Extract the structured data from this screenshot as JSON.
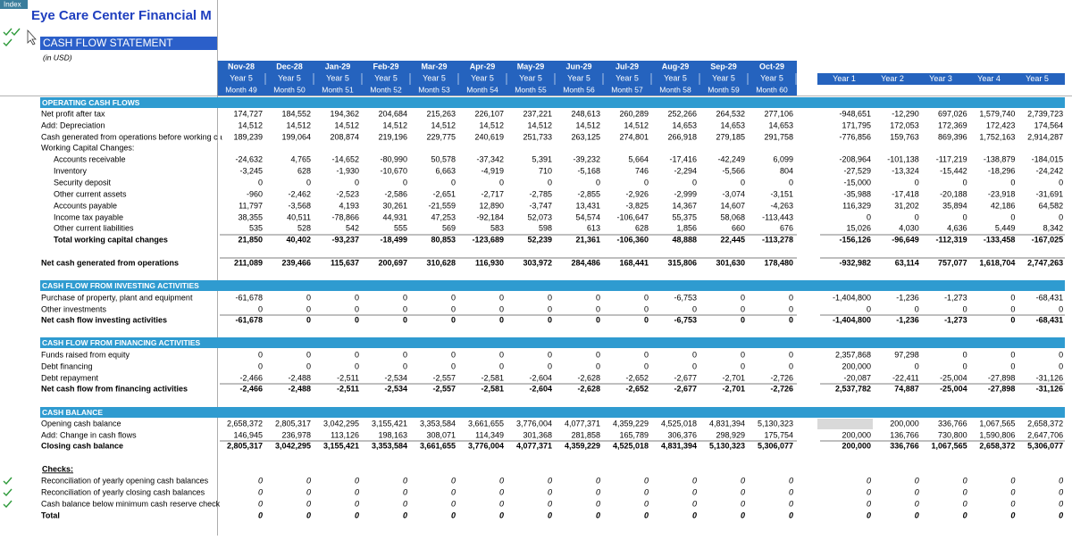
{
  "badge": "Index",
  "title": "Eye Care Center Financial M",
  "statement": "CASH FLOW STATEMENT",
  "unit": "(in USD)",
  "months": [
    {
      "date": "Nov-28",
      "year": "Year 5",
      "month": "Month 49"
    },
    {
      "date": "Dec-28",
      "year": "Year 5",
      "month": "Month 50"
    },
    {
      "date": "Jan-29",
      "year": "Year 5",
      "month": "Month 51"
    },
    {
      "date": "Feb-29",
      "year": "Year 5",
      "month": "Month 52"
    },
    {
      "date": "Mar-29",
      "year": "Year 5",
      "month": "Month 53"
    },
    {
      "date": "Apr-29",
      "year": "Year 5",
      "month": "Month 54"
    },
    {
      "date": "May-29",
      "year": "Year 5",
      "month": "Month 55"
    },
    {
      "date": "Jun-29",
      "year": "Year 5",
      "month": "Month 56"
    },
    {
      "date": "Jul-29",
      "year": "Year 5",
      "month": "Month 57"
    },
    {
      "date": "Aug-29",
      "year": "Year 5",
      "month": "Month 58"
    },
    {
      "date": "Sep-29",
      "year": "Year 5",
      "month": "Month 59"
    },
    {
      "date": "Oct-29",
      "year": "Year 5",
      "month": "Month 60"
    }
  ],
  "years": [
    "Year 1",
    "Year 2",
    "Year 3",
    "Year 4",
    "Year 5"
  ],
  "sections": [
    {
      "title": "OPERATING CASH FLOWS",
      "rows": [
        {
          "label": "Net profit after tax",
          "monthly": [
            "174,727",
            "184,552",
            "194,362",
            "204,684",
            "215,263",
            "226,107",
            "237,221",
            "248,613",
            "260,289",
            "252,266",
            "264,532",
            "277,106"
          ],
          "yearly": [
            "-948,651",
            "-12,290",
            "697,026",
            "1,579,740",
            "2,739,723"
          ]
        },
        {
          "label": "Add: Depreciation",
          "monthly": [
            "14,512",
            "14,512",
            "14,512",
            "14,512",
            "14,512",
            "14,512",
            "14,512",
            "14,512",
            "14,512",
            "14,653",
            "14,653",
            "14,653"
          ],
          "yearly": [
            "171,795",
            "172,053",
            "172,369",
            "172,423",
            "174,564"
          ]
        },
        {
          "label": "Cash generated from operations before working ca",
          "monthly": [
            "189,239",
            "199,064",
            "208,874",
            "219,196",
            "229,775",
            "240,619",
            "251,733",
            "263,125",
            "274,801",
            "266,918",
            "279,185",
            "291,758"
          ],
          "yearly": [
            "-776,856",
            "159,763",
            "869,396",
            "1,752,163",
            "2,914,287"
          ]
        },
        {
          "label": "Working Capital Changes:"
        },
        {
          "label": "Accounts receivable",
          "monthly": [
            "-24,632",
            "4,765",
            "-14,652",
            "-80,990",
            "50,578",
            "-37,342",
            "5,391",
            "-39,232",
            "5,664",
            "-17,416",
            "-42,249",
            "6,099"
          ],
          "yearly": [
            "-208,964",
            "-101,138",
            "-117,219",
            "-138,879",
            "-184,015"
          ]
        },
        {
          "label": "Inventory",
          "monthly": [
            "-3,245",
            "628",
            "-1,930",
            "-10,670",
            "6,663",
            "-4,919",
            "710",
            "-5,168",
            "746",
            "-2,294",
            "-5,566",
            "804"
          ],
          "yearly": [
            "-27,529",
            "-13,324",
            "-15,442",
            "-18,296",
            "-24,242"
          ]
        },
        {
          "label": "Security deposit",
          "monthly": [
            "0",
            "0",
            "0",
            "0",
            "0",
            "0",
            "0",
            "0",
            "0",
            "0",
            "0",
            "0"
          ],
          "yearly": [
            "-15,000",
            "0",
            "0",
            "0",
            "0"
          ]
        },
        {
          "label": "Other current assets",
          "monthly": [
            "-960",
            "-2,462",
            "-2,523",
            "-2,586",
            "-2,651",
            "-2,717",
            "-2,785",
            "-2,855",
            "-2,926",
            "-2,999",
            "-3,074",
            "-3,151"
          ],
          "yearly": [
            "-35,988",
            "-17,418",
            "-20,188",
            "-23,918",
            "-31,691"
          ]
        },
        {
          "label": "Accounts payable",
          "monthly": [
            "11,797",
            "-3,568",
            "4,193",
            "30,261",
            "-21,559",
            "12,890",
            "-3,747",
            "13,431",
            "-3,825",
            "14,367",
            "14,607",
            "-4,263"
          ],
          "yearly": [
            "116,329",
            "31,202",
            "35,894",
            "42,186",
            "64,582"
          ]
        },
        {
          "label": "Income tax payable",
          "monthly": [
            "38,355",
            "40,511",
            "-78,866",
            "44,931",
            "47,253",
            "-92,184",
            "52,073",
            "54,574",
            "-106,647",
            "55,375",
            "58,068",
            "-113,443"
          ],
          "yearly": [
            "0",
            "0",
            "0",
            "0",
            "0"
          ]
        },
        {
          "label": "Other current liabilities",
          "monthly": [
            "535",
            "528",
            "542",
            "555",
            "569",
            "583",
            "598",
            "613",
            "628",
            "1,856",
            "660",
            "676"
          ],
          "yearly": [
            "15,026",
            "4,030",
            "4,636",
            "5,449",
            "8,342"
          ]
        },
        {
          "label": "Total working capital changes",
          "monthly": [
            "21,850",
            "40,402",
            "-93,237",
            "-18,499",
            "80,853",
            "-123,689",
            "52,239",
            "21,361",
            "-106,360",
            "48,888",
            "22,445",
            "-113,278"
          ],
          "yearly": [
            "-156,126",
            "-96,649",
            "-112,319",
            "-133,458",
            "-167,025"
          ]
        },
        {
          "label": "Net cash generated from operations",
          "monthly": [
            "211,089",
            "239,466",
            "115,637",
            "200,697",
            "310,628",
            "116,930",
            "303,972",
            "284,486",
            "168,441",
            "315,806",
            "301,630",
            "178,480"
          ],
          "yearly": [
            "-932,982",
            "63,114",
            "757,077",
            "1,618,704",
            "2,747,263"
          ]
        }
      ]
    },
    {
      "title": "CASH FLOW FROM INVESTING ACTIVITIES",
      "rows": [
        {
          "label": "Purchase of property, plant and equipment",
          "monthly": [
            "-61,678",
            "0",
            "0",
            "0",
            "0",
            "0",
            "0",
            "0",
            "0",
            "-6,753",
            "0",
            "0"
          ],
          "yearly": [
            "-1,404,800",
            "-1,236",
            "-1,273",
            "0",
            "-68,431"
          ]
        },
        {
          "label": "Other investments",
          "monthly": [
            "0",
            "0",
            "0",
            "0",
            "0",
            "0",
            "0",
            "0",
            "0",
            "0",
            "0",
            "0"
          ],
          "yearly": [
            "0",
            "0",
            "0",
            "0",
            "0"
          ]
        },
        {
          "label": "Net cash flow investing activities",
          "monthly": [
            "-61,678",
            "0",
            "0",
            "0",
            "0",
            "0",
            "0",
            "0",
            "0",
            "-6,753",
            "0",
            "0"
          ],
          "yearly": [
            "-1,404,800",
            "-1,236",
            "-1,273",
            "0",
            "-68,431"
          ]
        }
      ]
    },
    {
      "title": "CASH FLOW FROM FINANCING ACTIVITIES",
      "rows": [
        {
          "label": "Funds raised from equity",
          "monthly": [
            "0",
            "0",
            "0",
            "0",
            "0",
            "0",
            "0",
            "0",
            "0",
            "0",
            "0",
            "0"
          ],
          "yearly": [
            "2,357,868",
            "97,298",
            "0",
            "0",
            "0"
          ]
        },
        {
          "label": "Debt financing",
          "monthly": [
            "0",
            "0",
            "0",
            "0",
            "0",
            "0",
            "0",
            "0",
            "0",
            "0",
            "0",
            "0"
          ],
          "yearly": [
            "200,000",
            "0",
            "0",
            "0",
            "0"
          ]
        },
        {
          "label": "Debt repayment",
          "monthly": [
            "-2,466",
            "-2,488",
            "-2,511",
            "-2,534",
            "-2,557",
            "-2,581",
            "-2,604",
            "-2,628",
            "-2,652",
            "-2,677",
            "-2,701",
            "-2,726"
          ],
          "yearly": [
            "-20,087",
            "-22,411",
            "-25,004",
            "-27,898",
            "-31,126"
          ]
        },
        {
          "label": "Net cash flow from financing activities",
          "monthly": [
            "-2,466",
            "-2,488",
            "-2,511",
            "-2,534",
            "-2,557",
            "-2,581",
            "-2,604",
            "-2,628",
            "-2,652",
            "-2,677",
            "-2,701",
            "-2,726"
          ],
          "yearly": [
            "2,537,782",
            "74,887",
            "-25,004",
            "-27,898",
            "-31,126"
          ]
        }
      ]
    },
    {
      "title": "CASH BALANCE",
      "rows": [
        {
          "label": "Opening cash balance",
          "monthly": [
            "2,658,372",
            "2,805,317",
            "3,042,295",
            "3,155,421",
            "3,353,584",
            "3,661,655",
            "3,776,004",
            "4,077,371",
            "4,359,229",
            "4,525,018",
            "4,831,394",
            "5,130,323"
          ],
          "yearly": [
            null,
            "200,000",
            "336,766",
            "1,067,565",
            "2,658,372"
          ]
        },
        {
          "label": "Add: Change in cash flows",
          "monthly": [
            "146,945",
            "236,978",
            "113,126",
            "198,163",
            "308,071",
            "114,349",
            "301,368",
            "281,858",
            "165,789",
            "306,376",
            "298,929",
            "175,754"
          ],
          "yearly": [
            "200,000",
            "136,766",
            "730,800",
            "1,590,806",
            "2,647,706"
          ]
        },
        {
          "label": "Closing cash balance",
          "monthly": [
            "2,805,317",
            "3,042,295",
            "3,155,421",
            "3,353,584",
            "3,661,655",
            "3,776,004",
            "4,077,371",
            "4,359,229",
            "4,525,018",
            "4,831,394",
            "5,130,323",
            "5,306,077"
          ],
          "yearly": [
            "200,000",
            "336,766",
            "1,067,565",
            "2,658,372",
            "5,306,077"
          ]
        }
      ]
    },
    {
      "title": "Checks:",
      "rows": [
        {
          "label": "Reconciliation of yearly opening cash balances",
          "monthly": [
            "0",
            "0",
            "0",
            "0",
            "0",
            "0",
            "0",
            "0",
            "0",
            "0",
            "0",
            "0"
          ],
          "yearly": [
            "0",
            "0",
            "0",
            "0",
            "0"
          ]
        },
        {
          "label": "Reconciliation of yearly closing cash balances",
          "monthly": [
            "0",
            "0",
            "0",
            "0",
            "0",
            "0",
            "0",
            "0",
            "0",
            "0",
            "0",
            "0"
          ],
          "yearly": [
            "0",
            "0",
            "0",
            "0",
            "0"
          ]
        },
        {
          "label": "Cash balance below minimum cash reserve check",
          "monthly": [
            "0",
            "0",
            "0",
            "0",
            "0",
            "0",
            "0",
            "0",
            "0",
            "0",
            "0",
            "0"
          ],
          "yearly": [
            "0",
            "0",
            "0",
            "0",
            "0"
          ]
        },
        {
          "label": "Total",
          "monthly": [
            "0",
            "0",
            "0",
            "0",
            "0",
            "0",
            "0",
            "0",
            "0",
            "0",
            "0",
            "0"
          ],
          "yearly": [
            "0",
            "0",
            "0",
            "0",
            "0"
          ]
        }
      ]
    }
  ]
}
